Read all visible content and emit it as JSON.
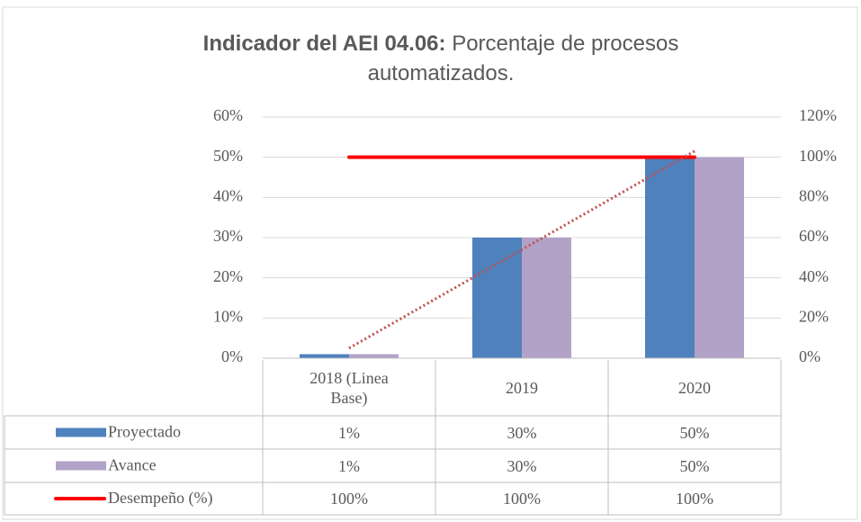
{
  "chart_data": {
    "type": "bar",
    "title": {
      "bold": "Indicador del AEI 04.06:",
      "text": "Porcentaje de procesos automatizados."
    },
    "categories": [
      "2018 (Linea Base)",
      "2019",
      "2020"
    ],
    "series": [
      {
        "name": "Proyectado",
        "color": "#4f81bd",
        "values": [
          1,
          30,
          50
        ],
        "value_labels": [
          "1%",
          "30%",
          "50%"
        ]
      },
      {
        "name": "Avance",
        "color": "#b3a2c7",
        "values": [
          1,
          30,
          50
        ],
        "value_labels": [
          "1%",
          "30%",
          "50%"
        ]
      },
      {
        "name": "Desempeño (%)",
        "type": "line",
        "axis": "y2",
        "color": "#ff0000",
        "values": [
          100,
          100,
          100
        ],
        "value_labels": [
          "100%",
          "100%",
          "100%"
        ]
      }
    ],
    "trendline": {
      "series": 0,
      "color": "#c0504d"
    },
    "ylim": [
      0,
      60
    ],
    "yticks": [
      {
        "value": 0,
        "label": "0%"
      },
      {
        "value": 10,
        "label": "10%"
      },
      {
        "value": 20,
        "label": "20%"
      },
      {
        "value": 30,
        "label": "30%"
      },
      {
        "value": 40,
        "label": "40%"
      },
      {
        "value": 50,
        "label": "50%"
      },
      {
        "value": 60,
        "label": "60%"
      }
    ],
    "y2lim": [
      0,
      120
    ],
    "y2ticks": [
      {
        "value": 0,
        "label": "0%"
      },
      {
        "value": 20,
        "label": "20%"
      },
      {
        "value": 40,
        "label": "40%"
      },
      {
        "value": 60,
        "label": "60%"
      },
      {
        "value": 80,
        "label": "80%"
      },
      {
        "value": 100,
        "label": "100%"
      },
      {
        "value": 120,
        "label": "120%"
      }
    ],
    "grid": true,
    "data_table": true
  }
}
